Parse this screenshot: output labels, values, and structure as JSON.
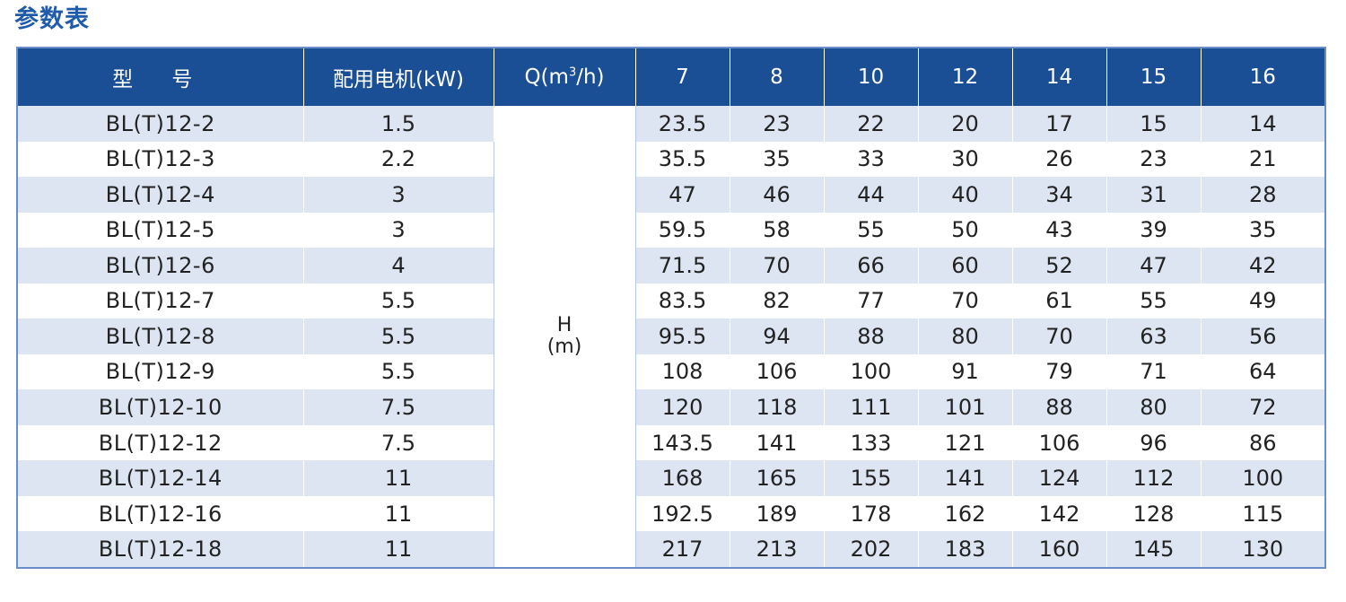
{
  "title": "参数表",
  "header": {
    "model": "型 号",
    "motor": "配用电机(kW)",
    "q_prefix": "Q(m",
    "q_sup": "3",
    "q_suffix": "/h)",
    "flows": [
      "7",
      "8",
      "10",
      "12",
      "14",
      "15",
      "16"
    ]
  },
  "head_label": {
    "line1": "H",
    "line2": "(m)"
  },
  "rows": [
    {
      "model": "BL(T)12-2",
      "power": "1.5",
      "values": [
        "23.5",
        "23",
        "22",
        "20",
        "17",
        "15",
        "14"
      ]
    },
    {
      "model": "BL(T)12-3",
      "power": "2.2",
      "values": [
        "35.5",
        "35",
        "33",
        "30",
        "26",
        "23",
        "21"
      ]
    },
    {
      "model": "BL(T)12-4",
      "power": "3",
      "values": [
        "47",
        "46",
        "44",
        "40",
        "34",
        "31",
        "28"
      ]
    },
    {
      "model": "BL(T)12-5",
      "power": "3",
      "values": [
        "59.5",
        "58",
        "55",
        "50",
        "43",
        "39",
        "35"
      ]
    },
    {
      "model": "BL(T)12-6",
      "power": "4",
      "values": [
        "71.5",
        "70",
        "66",
        "60",
        "52",
        "47",
        "42"
      ]
    },
    {
      "model": "BL(T)12-7",
      "power": "5.5",
      "values": [
        "83.5",
        "82",
        "77",
        "70",
        "61",
        "55",
        "49"
      ]
    },
    {
      "model": "BL(T)12-8",
      "power": "5.5",
      "values": [
        "95.5",
        "94",
        "88",
        "80",
        "70",
        "63",
        "56"
      ]
    },
    {
      "model": "BL(T)12-9",
      "power": "5.5",
      "values": [
        "108",
        "106",
        "100",
        "91",
        "79",
        "71",
        "64"
      ]
    },
    {
      "model": "BL(T)12-10",
      "power": "7.5",
      "values": [
        "120",
        "118",
        "111",
        "101",
        "88",
        "80",
        "72"
      ]
    },
    {
      "model": "BL(T)12-12",
      "power": "7.5",
      "values": [
        "143.5",
        "141",
        "133",
        "121",
        "106",
        "96",
        "86"
      ]
    },
    {
      "model": "BL(T)12-14",
      "power": "11",
      "values": [
        "168",
        "165",
        "155",
        "141",
        "124",
        "112",
        "100"
      ]
    },
    {
      "model": "BL(T)12-16",
      "power": "11",
      "values": [
        "192.5",
        "189",
        "178",
        "162",
        "142",
        "128",
        "115"
      ]
    },
    {
      "model": "BL(T)12-18",
      "power": "11",
      "values": [
        "217",
        "213",
        "202",
        "183",
        "160",
        "145",
        "130"
      ]
    }
  ]
}
